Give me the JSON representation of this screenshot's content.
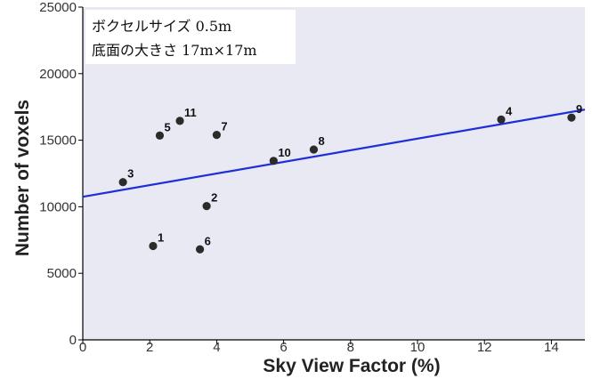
{
  "chart_data": {
    "type": "scatter",
    "xlabel": "Sky View Factor (%)",
    "ylabel": "Number of voxels",
    "xlim": [
      0,
      15
    ],
    "ylim": [
      0,
      25000
    ],
    "xticks": [
      0,
      2,
      4,
      6,
      8,
      10,
      12,
      14
    ],
    "yticks": [
      0,
      5000,
      10000,
      15000,
      20000,
      25000
    ],
    "grid": false,
    "annotation": [
      "ボクセルサイズ 0.5m",
      "底面の大きさ 17m×17m"
    ],
    "points": [
      {
        "label": "1",
        "x": 2.1,
        "y": 7050
      },
      {
        "label": "2",
        "x": 3.7,
        "y": 10050
      },
      {
        "label": "3",
        "x": 1.2,
        "y": 11850
      },
      {
        "label": "4",
        "x": 12.5,
        "y": 16550
      },
      {
        "label": "5",
        "x": 2.3,
        "y": 15350
      },
      {
        "label": "6",
        "x": 3.5,
        "y": 6800
      },
      {
        "label": "7",
        "x": 4.0,
        "y": 15400
      },
      {
        "label": "8",
        "x": 6.9,
        "y": 14300
      },
      {
        "label": "9",
        "x": 14.6,
        "y": 16700
      },
      {
        "label": "10",
        "x": 5.7,
        "y": 13450
      },
      {
        "label": "11",
        "x": 2.9,
        "y": 16450
      }
    ],
    "trendline": {
      "x": [
        0,
        15
      ],
      "y": [
        10750,
        17300
      ]
    },
    "colors": {
      "plot_background": "#e9e9f3",
      "point": "#2b2b2b",
      "trendline": "#1f2fd8",
      "axis": "#000000"
    }
  }
}
